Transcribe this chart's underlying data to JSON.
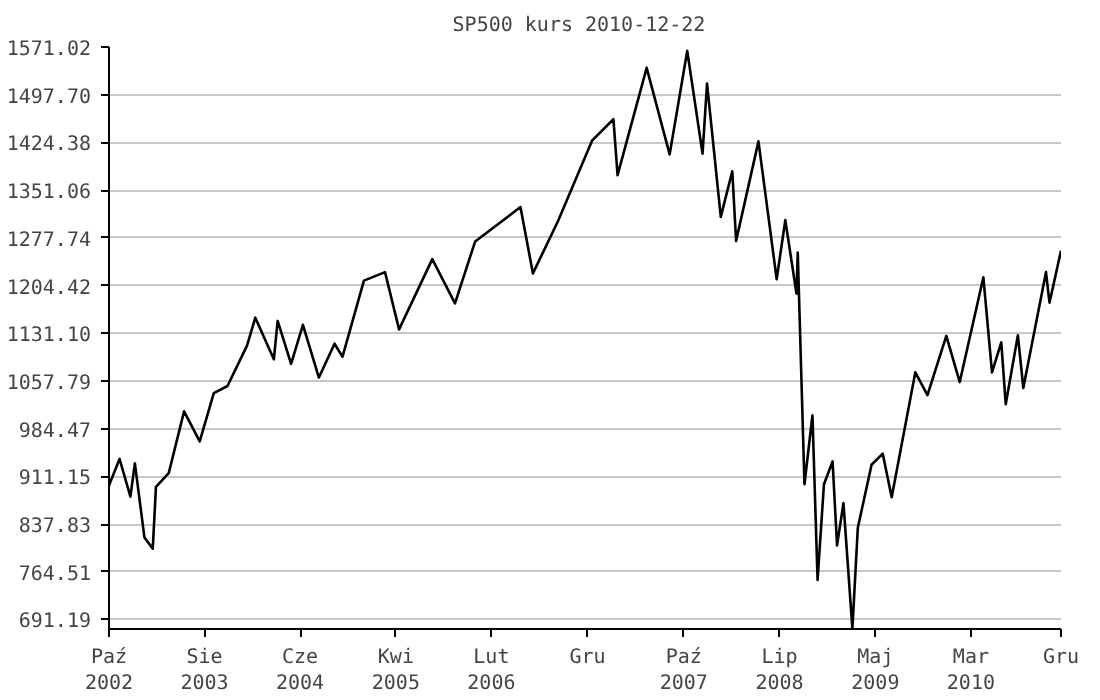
{
  "chart_data": {
    "type": "line",
    "title": "SP500 kurs  2010-12-22",
    "x": [
      "2002-10-25",
      "2002-11-27",
      "2002-12-31",
      "2003-01-14",
      "2003-02-13",
      "2003-03-11",
      "2003-03-21",
      "2003-04-30",
      "2003-06-17",
      "2003-08-05",
      "2003-09-18",
      "2003-10-31",
      "2003-12-31",
      "2004-01-26",
      "2004-03-24",
      "2004-04-05",
      "2004-05-17",
      "2004-06-23",
      "2004-08-12",
      "2004-09-30",
      "2004-10-25",
      "2004-12-31",
      "2005-03-07",
      "2005-04-20",
      "2005-08-02",
      "2005-10-12",
      "2005-12-14",
      "2006-05-05",
      "2006-06-13",
      "2006-08-31",
      "2006-12-15",
      "2007-02-20",
      "2007-03-05",
      "2007-06-04",
      "2007-08-15",
      "2007-10-09",
      "2007-11-26",
      "2007-12-10",
      "2008-01-22",
      "2008-02-27",
      "2008-03-10",
      "2008-05-19",
      "2008-07-15",
      "2008-08-11",
      "2008-09-15",
      "2008-09-19",
      "2008-10-10",
      "2008-11-04",
      "2008-11-20",
      "2008-12-10",
      "2009-01-06",
      "2009-01-20",
      "2009-02-09",
      "2009-03-09",
      "2009-03-26",
      "2009-05-08",
      "2009-06-12",
      "2009-07-10",
      "2009-09-22",
      "2009-10-30",
      "2009-12-28",
      "2010-02-08",
      "2010-04-23",
      "2010-05-20",
      "2010-06-18",
      "2010-07-02",
      "2010-08-09",
      "2010-08-26",
      "2010-11-05",
      "2010-11-16",
      "2010-12-22"
    ],
    "series": [
      {
        "color": "#000000",
        "values": [
          897,
          938,
          880,
          931,
          817,
          800,
          895,
          916,
          1011,
          965,
          1039,
          1050,
          1112,
          1155,
          1091,
          1150,
          1084,
          1144,
          1063,
          1115,
          1095,
          1212,
          1225,
          1137,
          1245,
          1177,
          1272,
          1325,
          1223,
          1304,
          1427,
          1460,
          1374,
          1539,
          1406,
          1565,
          1407,
          1515,
          1310,
          1380,
          1273,
          1426,
          1214,
          1305,
          1192,
          1255,
          899,
          1005,
          752,
          899,
          934,
          805,
          870,
          677,
          832,
          929,
          946,
          879,
          1071,
          1036,
          1127,
          1056,
          1217,
          1071,
          1117,
          1022,
          1128,
          1047,
          1225,
          1178,
          1258
        ]
      }
    ],
    "xlim": [
      "2002-10-25",
      "2010-12-22"
    ],
    "xticks": [
      {
        "value": "2002-10-25",
        "label": "Paź\n2002"
      },
      {
        "value": "2003-08-20",
        "label": "Sie\n2003"
      },
      {
        "value": "2004-06-14",
        "label": "Cze\n2004"
      },
      {
        "value": "2005-04-10",
        "label": "Kwi\n2005"
      },
      {
        "value": "2006-02-03",
        "label": "Lut\n2006"
      },
      {
        "value": "2006-12-01",
        "label": "Gru"
      },
      {
        "value": "2007-09-28",
        "label": "Paź\n2007"
      },
      {
        "value": "2008-07-24",
        "label": "Lip\n2008"
      },
      {
        "value": "2009-05-20",
        "label": "Maj\n2009"
      },
      {
        "value": "2010-03-15",
        "label": "Mar\n2010"
      },
      {
        "value": "2010-12-22",
        "label": "Gru"
      }
    ],
    "ylim": [
      676.5,
      1571.02
    ],
    "yticks": [
      {
        "value": 691.19,
        "label": "691.19"
      },
      {
        "value": 764.51,
        "label": "764.51"
      },
      {
        "value": 837.83,
        "label": "837.83"
      },
      {
        "value": 911.15,
        "label": "911.15"
      },
      {
        "value": 984.47,
        "label": "984.47"
      },
      {
        "value": 1057.79,
        "label": "1057.79"
      },
      {
        "value": 1131.1,
        "label": "1131.10"
      },
      {
        "value": 1204.42,
        "label": "1204.42"
      },
      {
        "value": 1277.74,
        "label": "1277.74"
      },
      {
        "value": 1351.06,
        "label": "1351.06"
      },
      {
        "value": 1424.38,
        "label": "1424.38"
      },
      {
        "value": 1497.7,
        "label": "1497.70"
      },
      {
        "value": 1571.02,
        "label": "1571.02"
      }
    ],
    "grid": "y",
    "line_style": "solid"
  }
}
